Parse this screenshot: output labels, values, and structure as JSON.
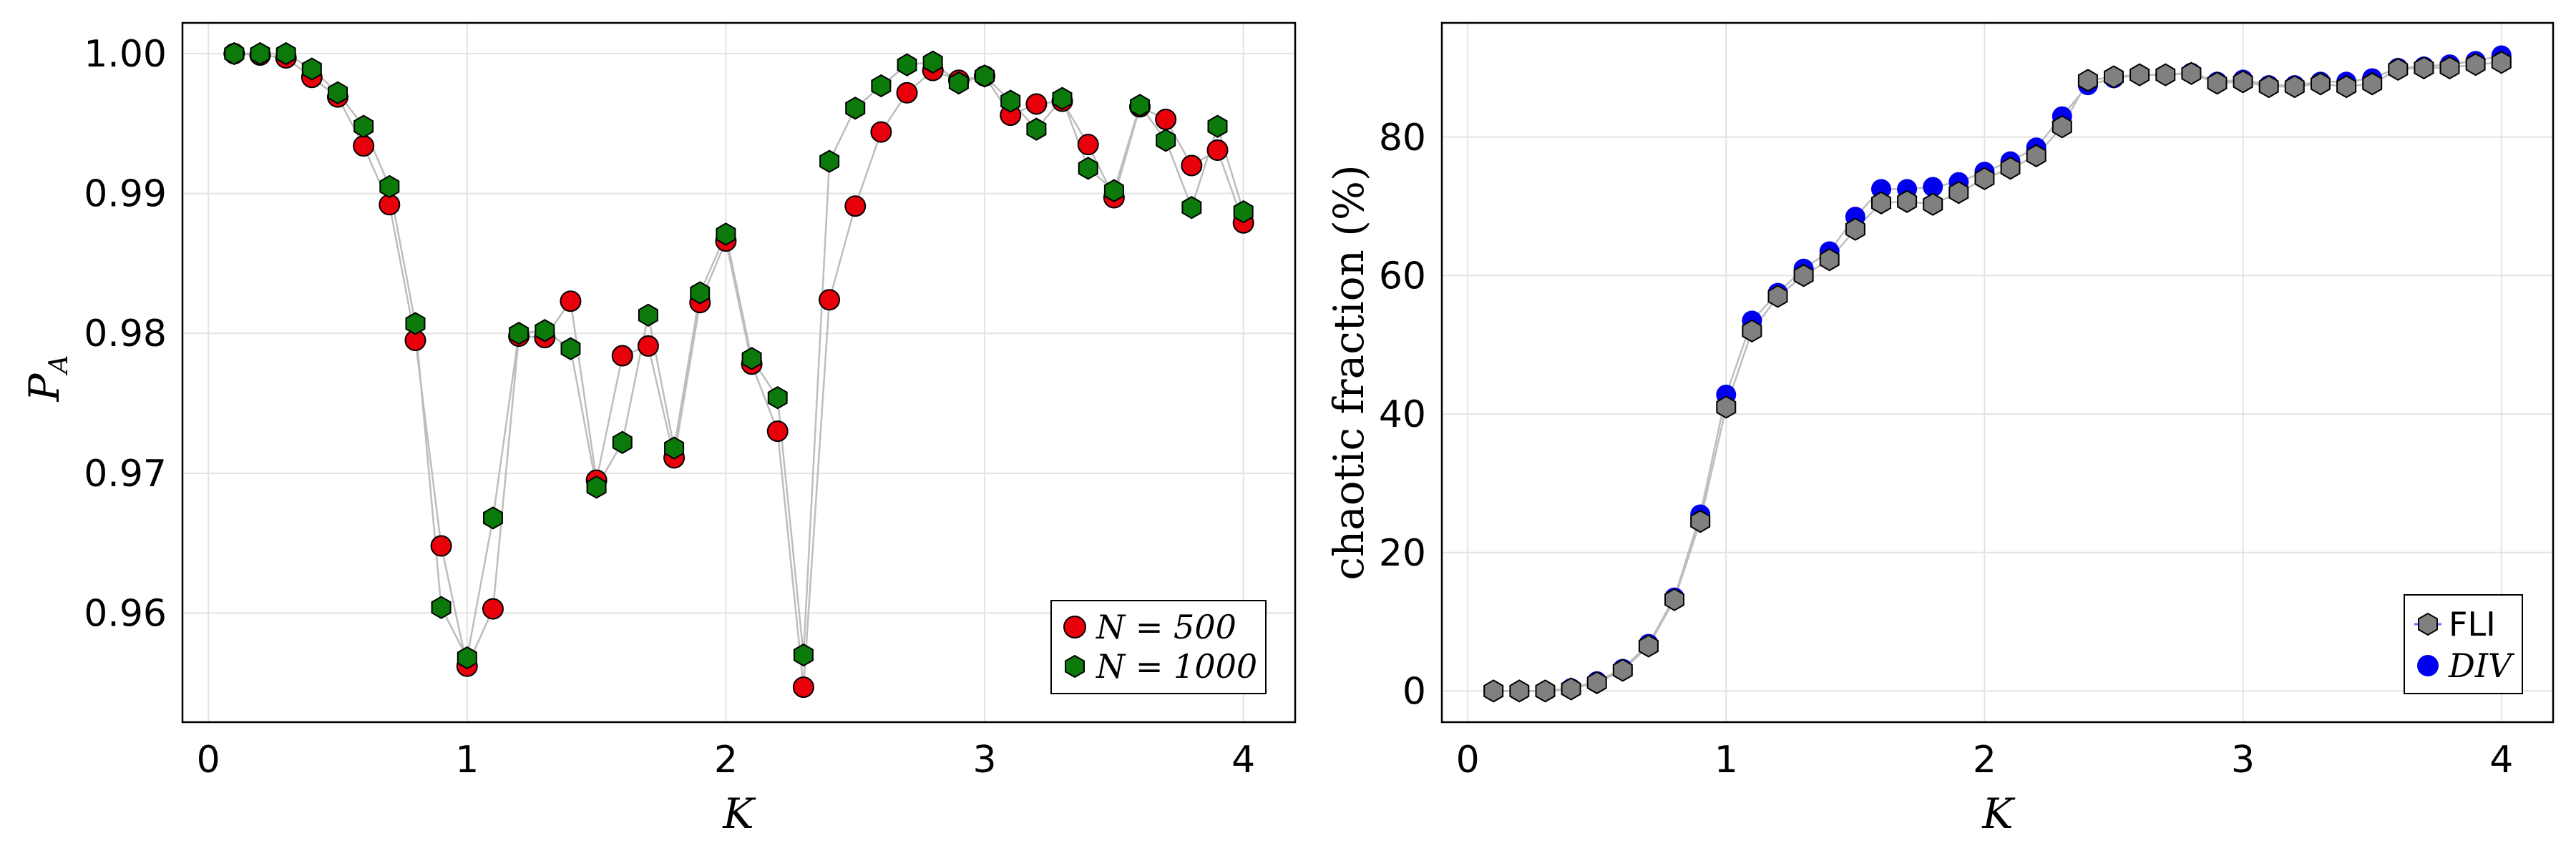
{
  "colors": {
    "red_marker": "#e8000b",
    "green_marker": "#0b7a0b",
    "blue_marker": "#0000ee",
    "gray_marker": "#808080",
    "connector": "#bdbdbd",
    "grid": "#e3e3e3"
  },
  "chart_data": [
    {
      "type": "scatter",
      "panel": "left",
      "xlabel": "K",
      "ylabel_main": "P",
      "ylabel_sub": "A",
      "xlim": [
        -0.1,
        4.2
      ],
      "ylim": [
        0.9522,
        1.0022
      ],
      "xticks": [
        0,
        1,
        2,
        3,
        4
      ],
      "xtick_labels": [
        "0",
        "1",
        "2",
        "3",
        "4"
      ],
      "yticks": [
        0.96,
        0.97,
        0.98,
        0.99,
        1.0
      ],
      "ytick_labels": [
        "0.96",
        "0.97",
        "0.98",
        "0.99",
        "1.00"
      ],
      "grid": true,
      "legend_position": "bottom-right",
      "x": [
        0.1,
        0.2,
        0.3,
        0.4,
        0.5,
        0.6,
        0.7,
        0.8,
        0.9,
        1.0,
        1.1,
        1.2,
        1.3,
        1.4,
        1.5,
        1.6,
        1.7,
        1.8,
        1.9,
        2.0,
        2.1,
        2.2,
        2.3,
        2.4,
        2.5,
        2.6,
        2.7,
        2.8,
        2.9,
        3.0,
        3.1,
        3.2,
        3.3,
        3.4,
        3.5,
        3.6,
        3.7,
        3.8,
        3.9,
        4.0
      ],
      "series": [
        {
          "name": "N = 500",
          "legend_lhs": "N",
          "legend_rhs": "500",
          "marker": "circle",
          "color": "#e8000b",
          "values": [
            1.0,
            0.9999,
            0.9997,
            0.9983,
            0.9969,
            0.9934,
            0.9892,
            0.9795,
            0.9648,
            0.9562,
            0.9603,
            0.9798,
            0.9797,
            0.9823,
            0.9695,
            0.9784,
            0.9791,
            0.9711,
            0.9822,
            0.9866,
            0.9778,
            0.973,
            0.9547,
            0.9824,
            0.9891,
            0.9944,
            0.9972,
            0.9988,
            0.9981,
            0.9984,
            0.9956,
            0.9964,
            0.9966,
            0.9935,
            0.9897,
            0.9962,
            0.9953,
            0.992,
            0.9931,
            0.9879
          ]
        },
        {
          "name": "N = 1000",
          "legend_lhs": "N",
          "legend_rhs": "1000",
          "marker": "hexagon",
          "color": "#0b7a0b",
          "values": [
            1.0,
            1.0,
            1.0,
            0.9989,
            0.9972,
            0.9948,
            0.9905,
            0.9807,
            0.9604,
            0.9568,
            0.9668,
            0.98,
            0.9802,
            0.9789,
            0.969,
            0.9722,
            0.9813,
            0.9718,
            0.9829,
            0.9871,
            0.9782,
            0.9754,
            0.957,
            0.9923,
            0.9961,
            0.9977,
            0.9992,
            0.9994,
            0.9979,
            0.9984,
            0.9966,
            0.9946,
            0.9968,
            0.9918,
            0.9902,
            0.9963,
            0.9938,
            0.989,
            0.9948,
            0.9887
          ]
        }
      ]
    },
    {
      "type": "scatter",
      "panel": "right",
      "xlabel": "K",
      "ylabel_text": "chaotic fraction (%)",
      "xlim": [
        -0.1,
        4.2
      ],
      "ylim": [
        -4.5,
        96.5
      ],
      "xticks": [
        0,
        1,
        2,
        3,
        4
      ],
      "xtick_labels": [
        "0",
        "1",
        "2",
        "3",
        "4"
      ],
      "yticks": [
        0,
        20,
        40,
        60,
        80
      ],
      "ytick_labels": [
        "0",
        "20",
        "40",
        "60",
        "80"
      ],
      "grid": true,
      "legend_position": "bottom-right",
      "x": [
        0.1,
        0.2,
        0.3,
        0.4,
        0.5,
        0.6,
        0.7,
        0.8,
        0.9,
        1.0,
        1.1,
        1.2,
        1.3,
        1.4,
        1.5,
        1.6,
        1.7,
        1.8,
        1.9,
        2.0,
        2.1,
        2.2,
        2.3,
        2.4,
        2.5,
        2.6,
        2.7,
        2.8,
        2.9,
        3.0,
        3.1,
        3.2,
        3.3,
        3.4,
        3.5,
        3.6,
        3.7,
        3.8,
        3.9,
        4.0
      ],
      "series": [
        {
          "name": "DIV",
          "marker": "circle",
          "color": "#0000ee",
          "values": [
            0.0,
            0.0,
            0.0,
            0.4,
            1.4,
            3.2,
            6.8,
            13.5,
            25.5,
            42.8,
            53.5,
            57.5,
            61.0,
            63.5,
            68.5,
            72.5,
            72.5,
            72.8,
            73.5,
            75.0,
            76.5,
            78.5,
            83.0,
            87.5,
            88.5,
            89.0,
            89.0,
            89.3,
            88.0,
            88.3,
            87.5,
            87.5,
            88.0,
            88.0,
            88.5,
            90.0,
            90.2,
            90.5,
            91.0,
            91.8
          ]
        },
        {
          "name": "FLI",
          "marker": "hexagon",
          "color": "#808080",
          "values": [
            0.0,
            0.0,
            0.0,
            0.3,
            1.2,
            3.0,
            6.5,
            13.2,
            24.5,
            41.0,
            52.0,
            57.0,
            60.0,
            62.3,
            66.7,
            70.5,
            70.7,
            70.3,
            72.0,
            74.0,
            75.5,
            77.3,
            81.5,
            88.2,
            88.7,
            89.0,
            89.0,
            89.2,
            87.8,
            88.0,
            87.3,
            87.3,
            87.7,
            87.3,
            87.7,
            89.8,
            90.0,
            90.0,
            90.5,
            90.8
          ]
        }
      ]
    }
  ]
}
